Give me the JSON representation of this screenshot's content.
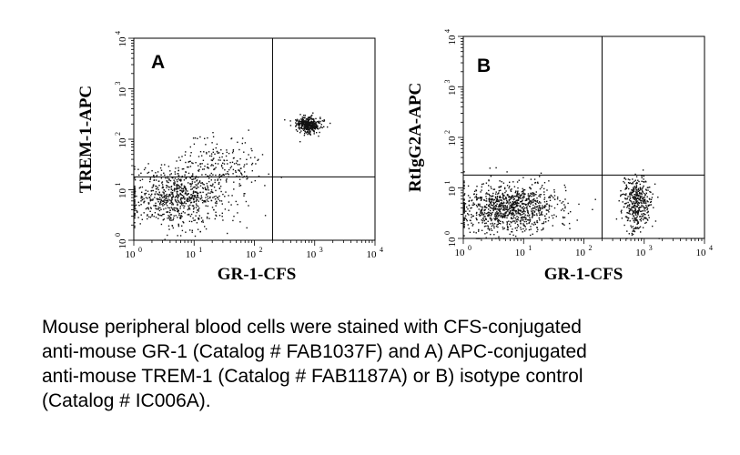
{
  "chart_data": [
    {
      "type": "scatter",
      "panel_label": "A",
      "xlabel": "GR-1-CFS",
      "ylabel": "TREM-1-APC",
      "x_scale": "log",
      "y_scale": "log",
      "xlim": [
        1,
        10000
      ],
      "ylim": [
        1,
        10000
      ],
      "x_ticks": [
        {
          "base": "10",
          "exp": "0"
        },
        {
          "base": "10",
          "exp": "1"
        },
        {
          "base": "10",
          "exp": "2"
        },
        {
          "base": "10",
          "exp": "3"
        },
        {
          "base": "10",
          "exp": "4"
        }
      ],
      "y_ticks": [
        {
          "base": "10",
          "exp": "0"
        },
        {
          "base": "10",
          "exp": "1"
        },
        {
          "base": "10",
          "exp": "2"
        },
        {
          "base": "10",
          "exp": "3"
        },
        {
          "base": "10",
          "exp": "4"
        }
      ],
      "quadrant_gates": {
        "x": 200,
        "y": 18
      },
      "populations": [
        {
          "x_center": 5,
          "y_center": 7,
          "x_log_spread": 0.42,
          "y_log_spread": 0.28,
          "count": 780
        },
        {
          "x_center": 25,
          "y_center": 30,
          "x_log_spread": 0.35,
          "y_log_spread": 0.3,
          "count": 220
        },
        {
          "x_center": 750,
          "y_center": 200,
          "x_log_spread": 0.1,
          "y_log_spread": 0.08,
          "count": 380
        }
      ],
      "grid": false
    },
    {
      "type": "scatter",
      "panel_label": "B",
      "xlabel": "GR-1-CFS",
      "ylabel": "RtIgG2A-APC",
      "x_scale": "log",
      "y_scale": "log",
      "xlim": [
        1,
        10000
      ],
      "ylim": [
        1,
        10000
      ],
      "x_ticks": [
        {
          "base": "10",
          "exp": "0"
        },
        {
          "base": "10",
          "exp": "1"
        },
        {
          "base": "10",
          "exp": "2"
        },
        {
          "base": "10",
          "exp": "3"
        },
        {
          "base": "10",
          "exp": "4"
        }
      ],
      "y_ticks": [
        {
          "base": "10",
          "exp": "0"
        },
        {
          "base": "10",
          "exp": "1"
        },
        {
          "base": "10",
          "exp": "2"
        },
        {
          "base": "10",
          "exp": "3"
        },
        {
          "base": "10",
          "exp": "4"
        }
      ],
      "quadrant_gates": {
        "x": 200,
        "y": 18
      },
      "populations": [
        {
          "x_center": 5,
          "y_center": 4,
          "x_log_spread": 0.45,
          "y_log_spread": 0.25,
          "count": 1050
        },
        {
          "x_center": 750,
          "y_center": 5,
          "x_log_spread": 0.12,
          "y_log_spread": 0.27,
          "count": 420
        }
      ],
      "grid": false
    }
  ],
  "caption": {
    "lines": [
      "Mouse peripheral blood cells were stained with CFS-conjugated",
      "anti-mouse GR-1 (Catalog # FAB1037F) and A) APC-conjugated",
      "anti-mouse TREM-1 (Catalog # FAB1187A) or B) isotype control",
      "(Catalog # IC006A)."
    ]
  }
}
